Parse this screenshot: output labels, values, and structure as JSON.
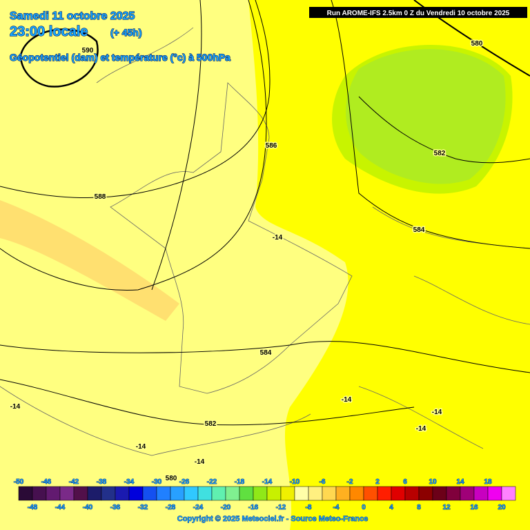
{
  "header": {
    "date": "Samedi 11 octobre 2025",
    "time": "23:00 locale",
    "lead": "(+ 45h)",
    "subtitle": "Géopotentiel (dam) et température (°c) à 500hPa",
    "run": "Run AROME-IFS 2.5km 0 Z du Vendredi 10 octobre 2025"
  },
  "contour_labels": [
    "590",
    "586",
    "588",
    "-14",
    "584",
    "582",
    "580",
    "584",
    "582",
    "-14",
    "-14",
    "-14",
    "-14",
    "-14",
    "-14",
    "580"
  ],
  "legend": {
    "values": [
      -50,
      -48,
      -46,
      -44,
      -42,
      -40,
      -38,
      -36,
      -34,
      -32,
      -30,
      -28,
      -26,
      -24,
      -22,
      -20,
      -18,
      -16,
      -14,
      -12,
      -10,
      -8,
      -6,
      -4,
      -2,
      0,
      2,
      4,
      6,
      8,
      10,
      12,
      14,
      16,
      18,
      20
    ],
    "colors": [
      "#2a0a36",
      "#46104f",
      "#621a70",
      "#7a2a88",
      "#52104a",
      "#1c1c6a",
      "#22308a",
      "#1a1ab0",
      "#0000dc",
      "#1450f0",
      "#2080ff",
      "#28a0ff",
      "#30c8ff",
      "#40e0e0",
      "#60f0b0",
      "#80f090",
      "#60e040",
      "#90e818",
      "#c8f000",
      "#f0f000",
      "#ffffa8",
      "#fff080",
      "#ffd850",
      "#ffb020",
      "#ff8800",
      "#ff5000",
      "#ff1e00",
      "#e00000",
      "#b80000",
      "#8c0000",
      "#6c0018",
      "#80003c",
      "#a00078",
      "#c800c0",
      "#f000f0",
      "#ff80ff"
    ]
  },
  "footer": {
    "copyright": "Copyright © 2025 Meteociel.fr - Source Meteo-France"
  }
}
